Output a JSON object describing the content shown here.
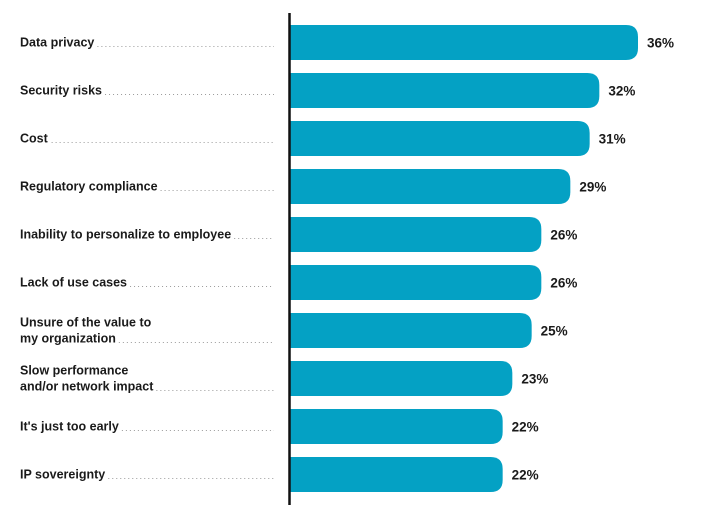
{
  "chart_data": {
    "type": "bar",
    "orientation": "horizontal",
    "title": "",
    "xlabel": "",
    "ylabel": "",
    "xlim": [
      0,
      36
    ],
    "grid": false,
    "legend": "none",
    "bar_color": "#04A1C4",
    "value_suffix": "%",
    "categories": [
      [
        "Data privacy"
      ],
      [
        "Security risks"
      ],
      [
        "Cost"
      ],
      [
        "Regulatory compliance"
      ],
      [
        "Inability to personalize to employee"
      ],
      [
        "Lack of use cases"
      ],
      [
        "Unsure of the value to",
        "my organization"
      ],
      [
        "Slow performance",
        "and/or network impact"
      ],
      [
        "It's just too early"
      ],
      [
        "IP sovereignty"
      ]
    ],
    "values": [
      36,
      32,
      31,
      29,
      26,
      26,
      25,
      23,
      22,
      22
    ],
    "value_labels": [
      "36%",
      "32%",
      "31%",
      "29%",
      "26%",
      "26%",
      "25%",
      "23%",
      "22%",
      "22%"
    ]
  }
}
